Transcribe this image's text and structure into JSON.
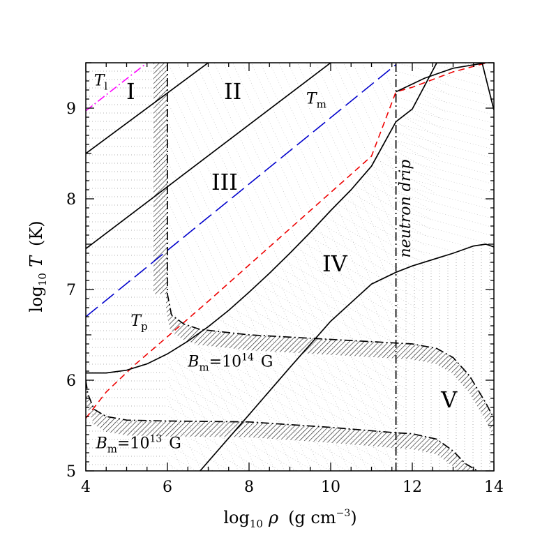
{
  "chart_data": {
    "type": "line",
    "x_axis": {
      "label_prefix": "log",
      "label_sub": "10",
      "label_var": "ρ",
      "label_unit": "(g  cm",
      "label_unit_sup": "−3",
      "label_unit_close": ")",
      "range": [
        4,
        14
      ],
      "ticks": [
        "4",
        "6",
        "8",
        "10",
        "12",
        "14"
      ]
    },
    "y_axis": {
      "label_prefix": "log",
      "label_sub": "10",
      "label_var": "T",
      "label_unit": "(K)",
      "range": [
        5,
        9.5
      ],
      "ticks": [
        "5",
        "6",
        "7",
        "8",
        "9"
      ]
    },
    "grid": false,
    "regions": [
      {
        "label": "I",
        "x": 5.1,
        "y": 9.1
      },
      {
        "label": "II",
        "x": 7.6,
        "y": 9.1
      },
      {
        "label": "III",
        "x": 7.4,
        "y": 8.1
      },
      {
        "label": "IV",
        "x": 10.1,
        "y": 7.2
      },
      {
        "label": "V",
        "x": 12.9,
        "y": 5.7
      }
    ],
    "annotations": {
      "T_l": {
        "var": "T",
        "sub": "l",
        "x": 4.2,
        "y": 9.25
      },
      "T_m": {
        "var": "T",
        "sub": "m",
        "x": 9.4,
        "y": 9.05
      },
      "T_p": {
        "var": "T",
        "sub": "p",
        "x": 5.1,
        "y": 6.6
      },
      "Bm14": {
        "var": "B",
        "sub": "m",
        "eq": "=10",
        "sup": "14",
        "unit": "G",
        "x": 6.5,
        "y": 6.15
      },
      "Bm13": {
        "var": "B",
        "sub": "m",
        "eq": "=10",
        "sup": "13",
        "unit": "G",
        "x": 4.25,
        "y": 5.25
      },
      "neutron_drip": {
        "text": "neutron drip",
        "x": 11.95,
        "y": 7.35
      }
    },
    "series": [
      {
        "color": "#ff00ff",
        "style": "dash-dot",
        "x": [
          4.0,
          5.5
        ],
        "y": [
          8.97,
          9.5
        ]
      },
      {
        "color": "#0000cc",
        "style": "long-dash",
        "x": [
          4.0,
          11.6
        ],
        "y": [
          6.7,
          9.48
        ]
      },
      {
        "color": "#ee0000",
        "style": "dash",
        "x": [
          4.0,
          4.5,
          5.2,
          6.0,
          7.0,
          8.0,
          9.0,
          10.0,
          11.0,
          11.6,
          12.0,
          13.0,
          14.0
        ],
        "y": [
          5.58,
          5.87,
          6.17,
          6.48,
          6.87,
          7.27,
          7.67,
          8.07,
          8.47,
          9.18,
          9.23,
          9.4,
          9.52
        ]
      },
      {
        "color": "#000000",
        "style": "solid",
        "x": [
          4.0,
          7.0
        ],
        "y": [
          8.5,
          9.5
        ]
      },
      {
        "color": "#000000",
        "style": "solid",
        "x": [
          4.0,
          10.0
        ],
        "y": [
          7.45,
          9.5
        ]
      },
      {
        "color": "#000000",
        "style": "solid",
        "x": [
          4.0,
          4.5,
          5.0,
          5.5,
          6.0,
          6.5,
          7.0,
          7.5,
          8.0,
          8.5,
          9.0,
          9.5,
          10.0,
          10.5,
          11.0,
          11.6,
          12.0,
          12.6,
          13.0
        ],
        "y": [
          6.08,
          6.08,
          6.11,
          6.18,
          6.29,
          6.43,
          6.59,
          6.77,
          6.97,
          7.18,
          7.4,
          7.63,
          7.87,
          8.1,
          8.36,
          8.85,
          8.99,
          9.5,
          9.5
        ]
      },
      {
        "color": "#000000",
        "style": "solid",
        "x": [
          6.8,
          8.0,
          9.0,
          10.0,
          11.0,
          11.6,
          12.0,
          13.0,
          13.5,
          13.8,
          14.0
        ],
        "y": [
          5.0,
          5.62,
          6.14,
          6.65,
          7.06,
          7.19,
          7.26,
          7.4,
          7.48,
          7.5,
          7.47
        ]
      },
      {
        "color": "#000000",
        "style": "solid",
        "x": [
          11.6,
          12.3,
          13.0,
          13.8
        ],
        "y": [
          9.18,
          9.33,
          9.44,
          9.5
        ]
      },
      {
        "color": "#000000",
        "style": "solid",
        "x": [
          13.7,
          14.0
        ],
        "y": [
          9.52,
          8.98
        ]
      },
      {
        "color": "#000000",
        "style": "dash-dot",
        "x": [
          11.6,
          11.6
        ],
        "y": [
          5.0,
          9.5
        ]
      },
      {
        "color": "#000000",
        "style": "dash-dot",
        "x": [
          6.0,
          6.0,
          6.1,
          6.4,
          6.8,
          8.0,
          10.0,
          11.6,
          12.0,
          12.6,
          13.0,
          13.4,
          13.8,
          14.0
        ],
        "y": [
          9.5,
          6.95,
          6.72,
          6.62,
          6.56,
          6.5,
          6.45,
          6.41,
          6.4,
          6.35,
          6.25,
          6.05,
          5.75,
          5.58
        ]
      },
      {
        "color": "#000000",
        "style": "dash-dot",
        "x": [
          4.0,
          4.05,
          4.2,
          4.5,
          5.0,
          6.0,
          8.0,
          10.0,
          11.6,
          12.0,
          12.6,
          13.0,
          13.3,
          13.6
        ],
        "y": [
          6.0,
          5.85,
          5.68,
          5.6,
          5.56,
          5.55,
          5.54,
          5.48,
          5.42,
          5.41,
          5.35,
          5.22,
          5.08,
          5.0
        ]
      }
    ]
  }
}
